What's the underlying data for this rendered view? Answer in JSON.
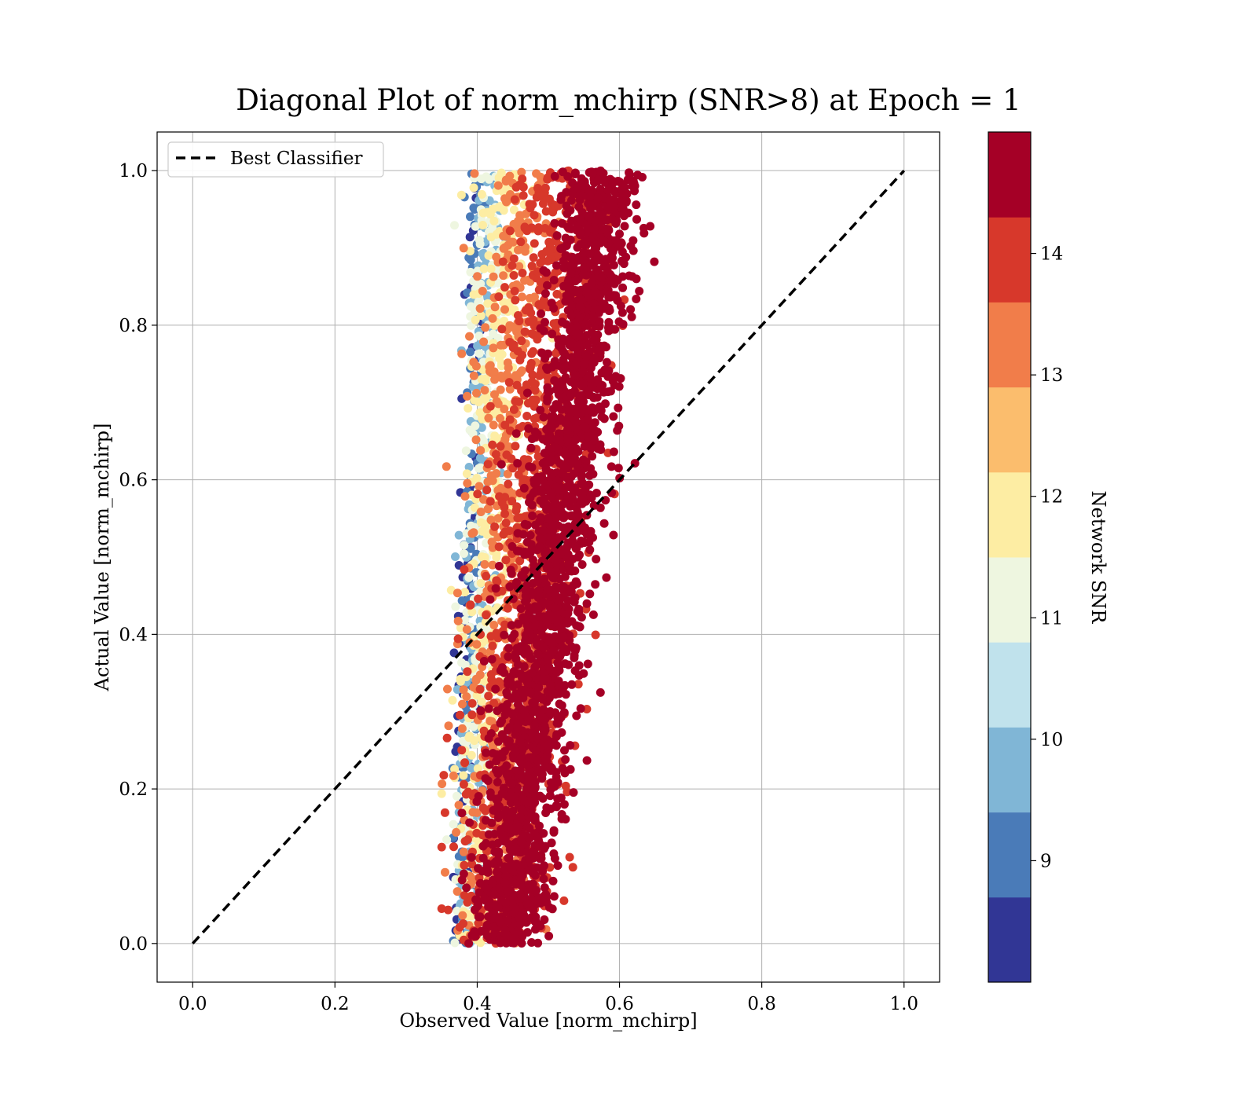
{
  "chart_data": {
    "type": "scatter",
    "title": "Diagonal Plot of norm_mchirp (SNR>8) at Epoch = 1",
    "xlabel": "Observed Value [norm_mchirp]",
    "ylabel": "Actual Value [norm_mchirp]",
    "xlim": [
      -0.05,
      1.05
    ],
    "ylim": [
      -0.05,
      1.05
    ],
    "xticks": [
      "0.0",
      "0.2",
      "0.4",
      "0.6",
      "0.8",
      "1.0"
    ],
    "yticks": [
      "0.0",
      "0.2",
      "0.4",
      "0.6",
      "0.8",
      "1.0"
    ],
    "grid": true,
    "legend": {
      "location": "upper-left",
      "entries": [
        {
          "label": "Best Classifier",
          "style": "dashed",
          "color": "#000000"
        }
      ]
    },
    "diagonal_line": {
      "x": [
        0.0,
        1.0
      ],
      "y": [
        0.0,
        1.0
      ],
      "style": "dashed",
      "color": "#000000"
    },
    "scatter_clusters": [
      {
        "snr": 14.5,
        "y_range": [
          0.0,
          1.0
        ],
        "x_center_at_y0": 0.44,
        "x_center_at_y1": 0.58,
        "x_halfwidth": 0.045,
        "count": 2200
      },
      {
        "snr": 14.0,
        "y_range": [
          0.0,
          1.0
        ],
        "x_center_at_y0": 0.43,
        "x_center_at_y1": 0.52,
        "x_halfwidth": 0.06,
        "count": 900
      },
      {
        "snr": 13.0,
        "y_range": [
          0.0,
          1.0
        ],
        "x_center_at_y0": 0.42,
        "x_center_at_y1": 0.46,
        "x_halfwidth": 0.05,
        "count": 500
      },
      {
        "snr": 12.0,
        "y_range": [
          0.0,
          1.0
        ],
        "x_center_at_y0": 0.4,
        "x_center_at_y1": 0.44,
        "x_halfwidth": 0.035,
        "count": 350
      },
      {
        "snr": 11.0,
        "y_range": [
          0.0,
          1.0
        ],
        "x_center_at_y0": 0.39,
        "x_center_at_y1": 0.42,
        "x_halfwidth": 0.025,
        "count": 250
      },
      {
        "snr": 10.0,
        "y_range": [
          0.0,
          1.0
        ],
        "x_center_at_y0": 0.385,
        "x_center_at_y1": 0.415,
        "x_halfwidth": 0.02,
        "count": 200
      },
      {
        "snr": 9.0,
        "y_range": [
          0.0,
          1.0
        ],
        "x_center_at_y0": 0.38,
        "x_center_at_y1": 0.405,
        "x_halfwidth": 0.015,
        "count": 120
      },
      {
        "snr": 8.5,
        "y_range": [
          0.0,
          1.0
        ],
        "x_center_at_y0": 0.375,
        "x_center_at_y1": 0.4,
        "x_halfwidth": 0.012,
        "count": 70
      }
    ],
    "colorbar": {
      "label": "Network SNR",
      "range": [
        8.0,
        15.0
      ],
      "tick_values": [
        9,
        10,
        11,
        12,
        13,
        14
      ],
      "tick_labels": [
        "9",
        "10",
        "11",
        "12",
        "13",
        "14"
      ],
      "bins": [
        {
          "from": 8.0,
          "to": 8.7,
          "color": "#313695"
        },
        {
          "from": 8.7,
          "to": 9.4,
          "color": "#4a7bb8"
        },
        {
          "from": 9.4,
          "to": 10.1,
          "color": "#80b6d6"
        },
        {
          "from": 10.1,
          "to": 10.8,
          "color": "#c0e2ec"
        },
        {
          "from": 10.8,
          "to": 11.5,
          "color": "#eef6e0"
        },
        {
          "from": 11.5,
          "to": 12.2,
          "color": "#fdeda3"
        },
        {
          "from": 12.2,
          "to": 12.9,
          "color": "#fbbd6d"
        },
        {
          "from": 12.9,
          "to": 13.6,
          "color": "#f17d4a"
        },
        {
          "from": 13.6,
          "to": 14.3,
          "color": "#d7382b"
        },
        {
          "from": 14.3,
          "to": 15.0,
          "color": "#a50026"
        }
      ]
    }
  }
}
